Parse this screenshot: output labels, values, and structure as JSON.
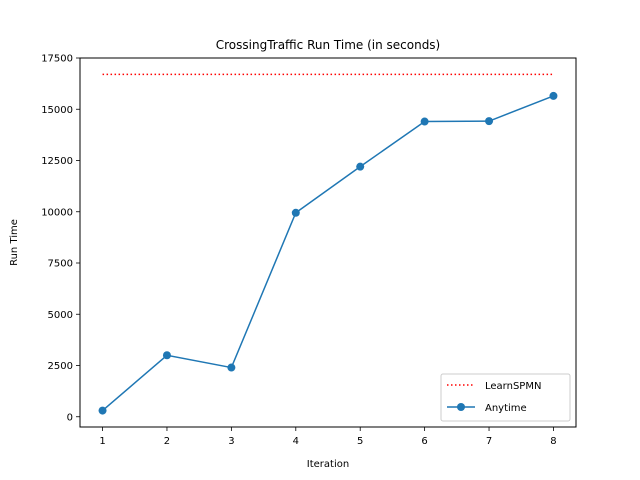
{
  "chart_data": {
    "type": "line",
    "title": "CrossingTraffic Run Time (in seconds)",
    "xlabel": "Iteration",
    "ylabel": "Run Time",
    "x": [
      1,
      2,
      3,
      4,
      5,
      6,
      7,
      8
    ],
    "xticks": [
      "1",
      "2",
      "3",
      "4",
      "5",
      "6",
      "7",
      "8"
    ],
    "yticks": [
      "0",
      "2500",
      "5000",
      "7500",
      "10000",
      "12500",
      "15000",
      "17500"
    ],
    "xlim": [
      0.65,
      8.35
    ],
    "ylim": [
      -500,
      17500
    ],
    "grid": false,
    "legend_position": "lower-right",
    "series": [
      {
        "name": "LearnSPMN",
        "style": "dotted",
        "color": "#ff0000",
        "marker": "none",
        "values": [
          16700,
          16700,
          16700,
          16700,
          16700,
          16700,
          16700,
          16700
        ]
      },
      {
        "name": "Anytime",
        "style": "solid",
        "color": "#1f77b4",
        "marker": "circle",
        "values": [
          300,
          3000,
          2400,
          9950,
          12200,
          14400,
          14420,
          15650
        ]
      }
    ]
  }
}
